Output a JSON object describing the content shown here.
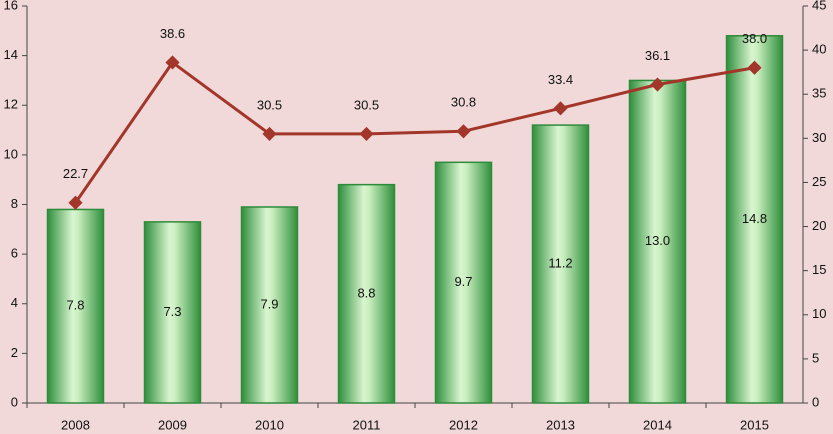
{
  "chart_data": {
    "type": "bar",
    "categories": [
      "2008",
      "2009",
      "2010",
      "2011",
      "2012",
      "2013",
      "2014",
      "2015"
    ],
    "series": [
      {
        "type": "bar",
        "axis": "y",
        "color": "#2e8b3a",
        "values": [
          7.8,
          7.3,
          7.9,
          8.8,
          9.7,
          11.2,
          13.0,
          14.8
        ],
        "value_labels": [
          "7.8",
          "7.3",
          "7.9",
          "8.8",
          "9.7",
          "11.2",
          "13.0",
          "14.8"
        ]
      },
      {
        "type": "line",
        "axis": "y2",
        "color": "#a3362a",
        "values": [
          22.7,
          38.6,
          30.5,
          30.5,
          30.8,
          33.4,
          36.1,
          38.0
        ],
        "value_labels": [
          "22.7",
          "38.6",
          "30.5",
          "30.5",
          "30.8",
          "33.4",
          "36.1",
          "38.0"
        ]
      }
    ],
    "ylim": [
      0,
      16
    ],
    "yticks": [
      0,
      2,
      4,
      6,
      8,
      10,
      12,
      14,
      16
    ],
    "y2lim": [
      0,
      45
    ],
    "y2ticks": [
      0,
      5,
      10,
      15,
      20,
      25,
      30,
      35,
      40,
      45
    ],
    "grid": false
  }
}
